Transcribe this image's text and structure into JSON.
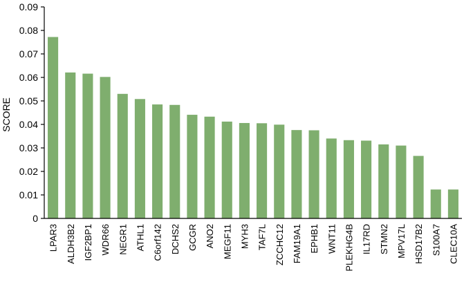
{
  "chart_data": {
    "type": "bar",
    "title": "",
    "xlabel": "",
    "ylabel": "SCORE",
    "ylim": [
      0,
      0.09
    ],
    "yticks": [
      "0",
      "0.01",
      "0.02",
      "0.03",
      "0.04",
      "0.05",
      "0.06",
      "0.07",
      "0.08",
      "0.09"
    ],
    "grid": false,
    "bar_color": "#7fae6e",
    "categories": [
      "LPAR3",
      "ALDH3B2",
      "IGF2BP1",
      "WDR66",
      "NEGR1",
      "ATHL1",
      "C6orf142",
      "DCHS2",
      "GCGR",
      "ANO2",
      "MEGF11",
      "MYH3",
      "TAF7L",
      "ZCCHC12",
      "FAM19A1",
      "EPHB1",
      "WNT11",
      "PLEKHG4B",
      "IL17RD",
      "STMN2",
      "MPV17L",
      "HSD17B2",
      "S100A7",
      "CLEC10A"
    ],
    "values": [
      0.0772,
      0.0621,
      0.0616,
      0.0602,
      0.053,
      0.0508,
      0.0485,
      0.0483,
      0.0441,
      0.0433,
      0.0412,
      0.0406,
      0.0405,
      0.0399,
      0.0376,
      0.0375,
      0.034,
      0.0333,
      0.0331,
      0.0315,
      0.031,
      0.0266,
      0.0123,
      0.0123
    ]
  }
}
